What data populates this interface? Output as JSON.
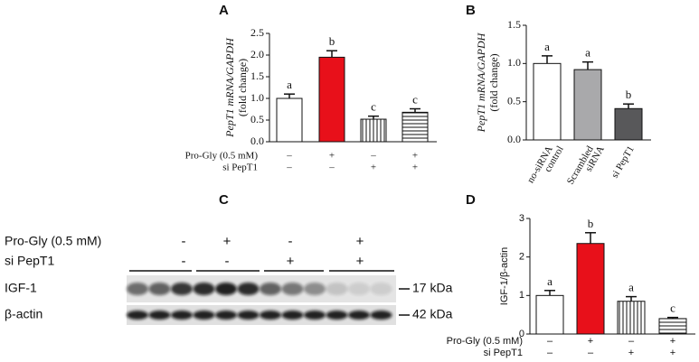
{
  "chart_data": [
    {
      "type": "bar",
      "label": "A",
      "ylabel": [
        "PepT1 mRNA/GAPDH",
        "(fold change)"
      ],
      "ylim": [
        0,
        2.5
      ],
      "yticks": [
        {
          "value": 0,
          "label": "0.0"
        },
        0.5,
        {
          "value": 1,
          "label": "1.0"
        },
        1.5,
        {
          "value": 2,
          "label": "2.0"
        },
        2.5
      ],
      "values": [
        1.0,
        1.95,
        0.52,
        0.68
      ],
      "errors": [
        0.1,
        0.15,
        0.07,
        0.08
      ],
      "letters": [
        "a",
        "b",
        "c",
        "c"
      ],
      "fills": [
        "#ffffff",
        "#e8101a",
        "vstripe",
        "hstripe"
      ],
      "conditions": [
        {
          "name": "Pro-Gly (0.5 mM)",
          "signs": [
            "–",
            "+",
            "–",
            "+"
          ]
        },
        {
          "name": "si PepT1",
          "signs": [
            "–",
            "–",
            "+",
            "+"
          ]
        }
      ]
    },
    {
      "type": "bar",
      "label": "B",
      "ylabel": [
        "PepT1 mRNA/GAPDH",
        "(fold change)"
      ],
      "ylim": [
        0,
        1.5
      ],
      "yticks": [
        {
          "value": 0,
          "label": "0.0"
        },
        0.5,
        {
          "value": 1,
          "label": "1.0"
        },
        1.5
      ],
      "categories": [
        [
          "no-siRNA",
          "control"
        ],
        [
          "Scrambled",
          "siRNA"
        ],
        [
          "si PepT1"
        ]
      ],
      "values": [
        1.0,
        0.92,
        0.41
      ],
      "errors": [
        0.1,
        0.1,
        0.06
      ],
      "letters": [
        "a",
        "a",
        "b"
      ],
      "fills": [
        "#ffffff",
        "#a9a9ab",
        "#58585a"
      ]
    },
    {
      "type": "bar",
      "label": "D",
      "ylabel": [
        "IGF-1/β-actin"
      ],
      "ylim": [
        0,
        3
      ],
      "yticks": [
        0,
        1,
        2,
        3
      ],
      "values": [
        1.0,
        2.35,
        0.85,
        0.4
      ],
      "errors": [
        0.13,
        0.28,
        0.12,
        0.03
      ],
      "letters": [
        "a",
        "b",
        "a",
        "c"
      ],
      "fills": [
        "#ffffff",
        "#e8101a",
        "vstripe",
        "hstripe"
      ],
      "conditions": [
        {
          "name": "Pro-Gly (0.5 mM)",
          "signs": [
            "–",
            "+",
            "–",
            "+"
          ]
        },
        {
          "name": "si PepT1",
          "signs": [
            "–",
            "–",
            "+",
            "+"
          ]
        }
      ]
    }
  ],
  "blot": {
    "label": "C",
    "conditions": [
      {
        "name": "Pro-Gly (0.5 mM)",
        "signs": [
          "-",
          "+",
          "-",
          "+"
        ]
      },
      {
        "name": "si PepT1",
        "signs": [
          "-",
          "-",
          "+",
          "+"
        ]
      }
    ],
    "bands": [
      {
        "name": "IGF-1",
        "size": "17 kDa"
      },
      {
        "name": "β-actin",
        "size": "42 kDa"
      }
    ]
  }
}
